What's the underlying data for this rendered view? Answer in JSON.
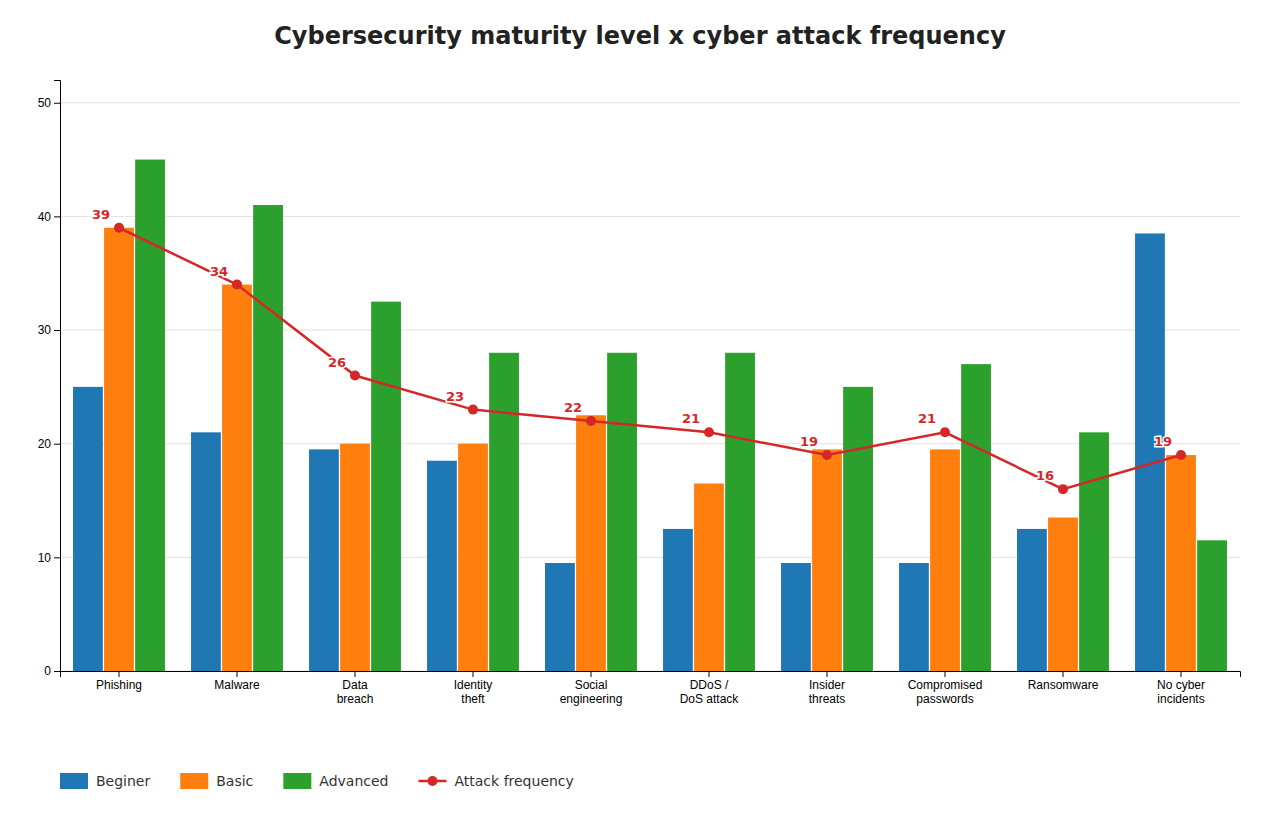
{
  "chart_data": {
    "type": "bar",
    "title": "Cybersecurity maturity level x cyber attack frequency",
    "categories": [
      "Phishing",
      "Malware",
      "Data\nbreach",
      "Identity\ntheft",
      "Social\nengineering",
      "DDoS /\nDoS attack",
      "Insider\nthreats",
      "Compromised\npasswords",
      "Ransomware",
      "No cyber\nincidents"
    ],
    "series": [
      {
        "name": "Beginer",
        "values": [
          25,
          21,
          19.5,
          18.5,
          9.5,
          12.5,
          9.5,
          9.5,
          12.5,
          38.5
        ]
      },
      {
        "name": "Basic",
        "values": [
          39,
          34,
          20,
          20,
          22.5,
          16.5,
          19.5,
          19.5,
          13.5,
          19
        ]
      },
      {
        "name": "Advanced",
        "values": [
          45,
          41,
          32.5,
          28,
          28,
          28,
          25,
          27,
          21,
          11.5
        ]
      },
      {
        "name": "Attack frequency",
        "type": "line",
        "marker": "circle",
        "data_labels": true,
        "values": [
          39,
          34,
          26,
          23,
          22,
          21,
          19,
          21,
          16,
          19
        ]
      }
    ],
    "ylim": [
      0,
      52
    ],
    "yticks": [
      0,
      10,
      20,
      30,
      40,
      50
    ],
    "grid": true,
    "legend": "bottom"
  }
}
